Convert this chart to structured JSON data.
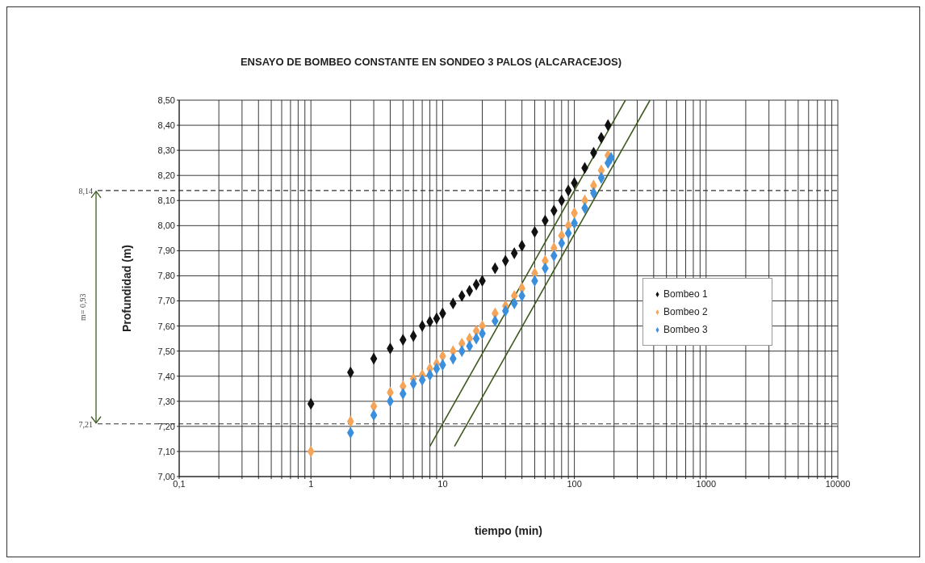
{
  "chart_data": {
    "type": "scatter",
    "title": "ENSAYO DE BOMBEO CONSTANTE EN SONDEO 3 PALOS (ALCARACEJOS)",
    "xlabel": "tiempo (min)",
    "ylabel": "Profundidad (m)",
    "log": "x",
    "xlim": [
      0.1,
      10000
    ],
    "ylim": [
      7,
      8.5
    ],
    "xticks": [
      {
        "value": 0.1,
        "label": "0,1"
      },
      {
        "value": 0.2,
        "label": null
      },
      {
        "value": 0.3,
        "label": null
      },
      {
        "value": 0.4,
        "label": null
      },
      {
        "value": 0.5,
        "label": null
      },
      {
        "value": 0.6,
        "label": null
      },
      {
        "value": 0.7,
        "label": null
      },
      {
        "value": 0.8,
        "label": null
      },
      {
        "value": 0.9,
        "label": null
      },
      1,
      {
        "value": 2,
        "label": null
      },
      {
        "value": 3,
        "label": null
      },
      {
        "value": 4,
        "label": null
      },
      {
        "value": 5,
        "label": null
      },
      {
        "value": 6,
        "label": null
      },
      {
        "value": 7,
        "label": null
      },
      {
        "value": 8,
        "label": null
      },
      {
        "value": 9,
        "label": null
      },
      10,
      {
        "value": 20,
        "label": null
      },
      {
        "value": 30,
        "label": null
      },
      {
        "value": 40,
        "label": null
      },
      {
        "value": 50,
        "label": null
      },
      {
        "value": 60,
        "label": null
      },
      {
        "value": 70,
        "label": null
      },
      {
        "value": 80,
        "label": null
      },
      {
        "value": 90,
        "label": null
      },
      100,
      {
        "value": 200,
        "label": null
      },
      {
        "value": 300,
        "label": null
      },
      {
        "value": 400,
        "label": null
      },
      {
        "value": 500,
        "label": null
      },
      {
        "value": 600,
        "label": null
      },
      {
        "value": 700,
        "label": null
      },
      {
        "value": 800,
        "label": null
      },
      {
        "value": 900,
        "label": null
      },
      1000,
      {
        "value": 2000,
        "label": null
      },
      {
        "value": 3000,
        "label": null
      },
      {
        "value": 4000,
        "label": null
      },
      {
        "value": 5000,
        "label": null
      },
      {
        "value": 6000,
        "label": null
      },
      {
        "value": 7000,
        "label": null
      },
      {
        "value": 8000,
        "label": null
      },
      {
        "value": 9000,
        "label": null
      },
      10000
    ],
    "yticks": [
      {
        "value": 7,
        "label": "7,00"
      },
      {
        "value": 7.1,
        "label": "7,10"
      },
      {
        "value": 7.2,
        "label": "7,20"
      },
      {
        "value": 7.3,
        "label": "7,30"
      },
      {
        "value": 7.4,
        "label": "7,40"
      },
      {
        "value": 7.5,
        "label": "7,50"
      },
      {
        "value": 7.6,
        "label": "7,60"
      },
      {
        "value": 7.7,
        "label": "7,70"
      },
      {
        "value": 7.8,
        "label": "7,80"
      },
      {
        "value": 7.9,
        "label": "7,90"
      },
      {
        "value": 8,
        "label": "8,00"
      },
      {
        "value": 8.1,
        "label": "8,10"
      },
      {
        "value": 8.2,
        "label": "8,20"
      },
      {
        "value": 8.3,
        "label": "8,30"
      },
      {
        "value": 8.4,
        "label": "8,40"
      },
      {
        "value": 8.5,
        "label": "8,50"
      }
    ],
    "grid": true,
    "legend": "right",
    "marker": "diamond",
    "series": [
      {
        "name": "Bombeo 1",
        "color": "#111111",
        "x": [
          1,
          2,
          3,
          4,
          5,
          6,
          7,
          8,
          9,
          10,
          12,
          14,
          16,
          18,
          20,
          25,
          30,
          35,
          40,
          50,
          60,
          70,
          80,
          90,
          100,
          120,
          140,
          160,
          180
        ],
        "values": [
          7.29,
          7.415,
          7.47,
          7.51,
          7.545,
          7.56,
          7.6,
          7.617,
          7.63,
          7.65,
          7.69,
          7.72,
          7.74,
          7.765,
          7.78,
          7.83,
          7.86,
          7.89,
          7.92,
          7.975,
          8.02,
          8.06,
          8.1,
          8.14,
          8.17,
          8.23,
          8.29,
          8.35,
          8.4
        ]
      },
      {
        "name": "Bombeo 2",
        "color": "#f4a55a",
        "x": [
          1,
          2,
          3,
          4,
          5,
          6,
          7,
          8,
          9,
          10,
          12,
          14,
          16,
          18,
          20,
          25,
          30,
          35,
          40,
          50,
          60,
          70,
          80,
          90,
          100,
          120,
          140,
          160,
          180
        ],
        "values": [
          7.1,
          7.22,
          7.28,
          7.335,
          7.36,
          7.39,
          7.405,
          7.43,
          7.45,
          7.48,
          7.5,
          7.53,
          7.55,
          7.58,
          7.6,
          7.65,
          7.68,
          7.72,
          7.75,
          7.81,
          7.86,
          7.91,
          7.96,
          8.0,
          8.05,
          8.1,
          8.16,
          8.22,
          8.28
        ]
      },
      {
        "name": "Bombeo 3",
        "color": "#3b8fdc",
        "x": [
          2,
          3,
          4,
          5,
          6,
          7,
          8,
          9,
          10,
          12,
          14,
          16,
          18,
          20,
          25,
          30,
          35,
          40,
          50,
          60,
          70,
          80,
          90,
          100,
          120,
          140,
          160,
          180,
          190
        ],
        "values": [
          7.175,
          7.245,
          7.3,
          7.33,
          7.37,
          7.385,
          7.405,
          7.43,
          7.445,
          7.47,
          7.5,
          7.52,
          7.55,
          7.57,
          7.62,
          7.66,
          7.69,
          7.72,
          7.78,
          7.83,
          7.88,
          7.93,
          7.97,
          8.01,
          8.07,
          8.13,
          8.19,
          8.25,
          8.27
        ]
      },
      {
        "type": "line",
        "color": "#3d5a1e",
        "marker": "none",
        "x": [
          8,
          244
        ],
        "values": [
          7.12,
          8.5
        ]
      },
      {
        "type": "line",
        "color": "#3d5a1e",
        "marker": "none",
        "x": [
          12.3,
          375
        ],
        "values": [
          7.12,
          8.5
        ]
      }
    ],
    "ref_lines": [
      {
        "axis": "y",
        "value": 8.14,
        "label": "8,14",
        "color": "#333333",
        "line_style": "dashed"
      },
      {
        "axis": "y",
        "value": 7.21,
        "label": "7,21",
        "color": "#333333",
        "line_style": "dashed"
      }
    ],
    "annotations": [
      "m= 0,93"
    ]
  }
}
